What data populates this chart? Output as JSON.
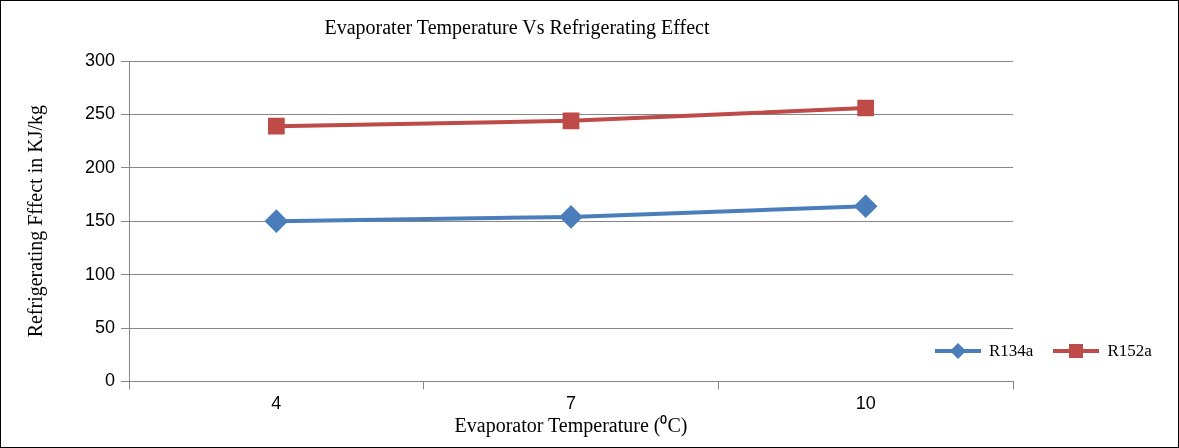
{
  "chart_data": {
    "type": "line",
    "title": "Evaporater Temperature Vs Refrigerating Effect",
    "xlabel": "Evaporator Temperature (⁰C)",
    "ylabel": "Refrigerating Fffect in KJ/kg",
    "categories": [
      "4",
      "7",
      "10"
    ],
    "series": [
      {
        "name": "R134a",
        "color": "#4a7ebb",
        "marker": "diamond",
        "values": [
          150,
          154,
          164
        ]
      },
      {
        "name": "R152a",
        "color": "#be4b48",
        "marker": "square",
        "values": [
          239,
          244,
          256
        ]
      }
    ],
    "ylim": [
      0,
      300
    ],
    "yticks": [
      0,
      50,
      100,
      150,
      200,
      250,
      300
    ],
    "grid": "y",
    "legend": "bottom right"
  }
}
